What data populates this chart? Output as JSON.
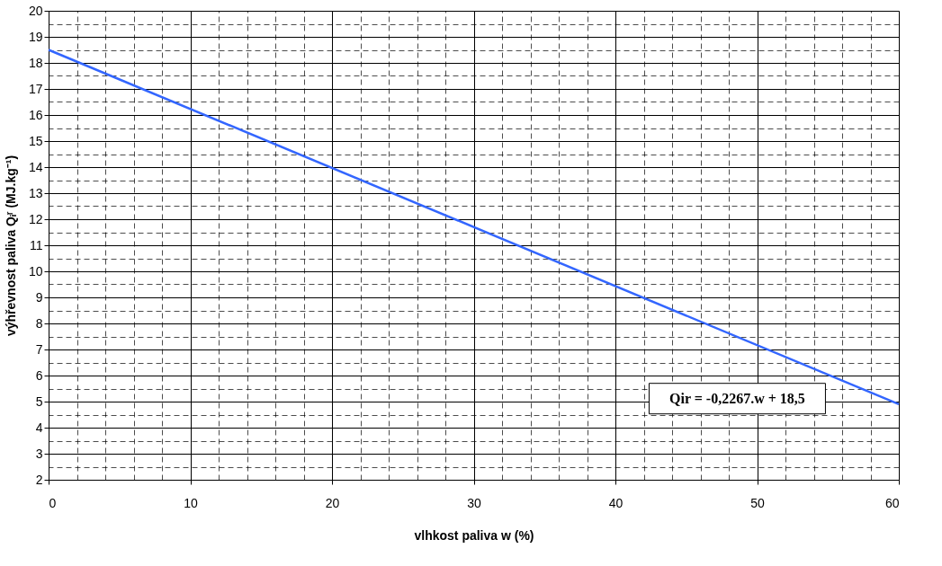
{
  "chart_data": {
    "type": "line",
    "xlabel": "vlhkost paliva w (%)",
    "ylabel": "výhřevnost paliva Qᵢʳ (MJ.kg⁻¹)",
    "x": [
      0,
      60
    ],
    "series": [
      {
        "color": "#3366ff",
        "values": [
          18.5,
          4.9
        ]
      }
    ],
    "xlim": [
      0,
      60
    ],
    "xticks": [
      0,
      10,
      20,
      30,
      40,
      50,
      60
    ],
    "ylim": [
      2,
      20
    ],
    "yticks": [
      2,
      3,
      4,
      5,
      6,
      7,
      8,
      9,
      10,
      11,
      12,
      13,
      14,
      15,
      16,
      17,
      18,
      19,
      20
    ],
    "grid": true,
    "marker": "none",
    "line_style": "solid",
    "annotations": [
      "Qir = -0,2267.w + 18,5"
    ]
  }
}
